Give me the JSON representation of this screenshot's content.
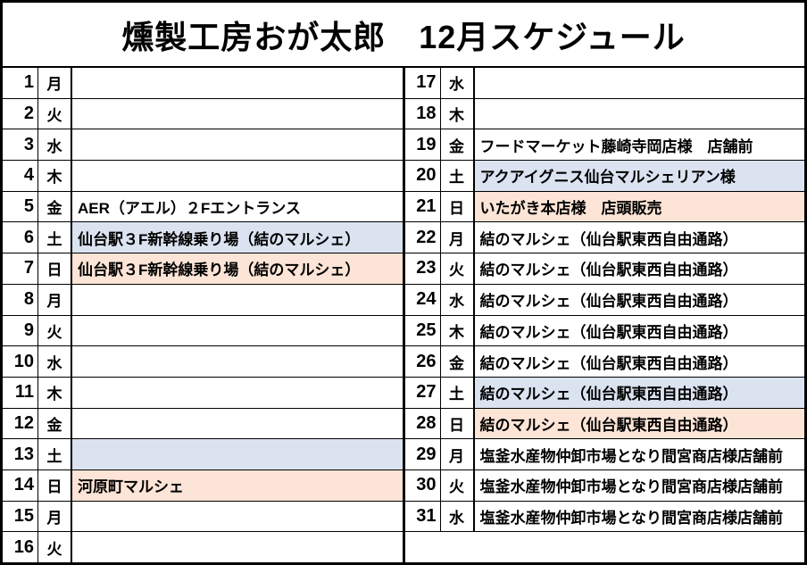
{
  "title": "燻製工房おが太郎　12月スケジュール",
  "colors": {
    "saturday_fill": "#dbe3f1",
    "sunday_fill": "#fce4d6",
    "border": "#000000",
    "text": "#000000",
    "background": "#ffffff"
  },
  "left_rows": [
    {
      "day": "1",
      "weekday": "月",
      "event": "",
      "fill": "none"
    },
    {
      "day": "2",
      "weekday": "火",
      "event": "",
      "fill": "none"
    },
    {
      "day": "3",
      "weekday": "水",
      "event": "",
      "fill": "none"
    },
    {
      "day": "4",
      "weekday": "木",
      "event": "",
      "fill": "none"
    },
    {
      "day": "5",
      "weekday": "金",
      "event": "AER（アエル）２Fエントランス",
      "fill": "none"
    },
    {
      "day": "6",
      "weekday": "土",
      "event": "仙台駅３F新幹線乗り場（結のマルシェ）",
      "fill": "saturday"
    },
    {
      "day": "7",
      "weekday": "日",
      "event": "仙台駅３F新幹線乗り場（結のマルシェ）",
      "fill": "sunday"
    },
    {
      "day": "8",
      "weekday": "月",
      "event": "",
      "fill": "none"
    },
    {
      "day": "9",
      "weekday": "火",
      "event": "",
      "fill": "none"
    },
    {
      "day": "10",
      "weekday": "水",
      "event": "",
      "fill": "none"
    },
    {
      "day": "11",
      "weekday": "木",
      "event": "",
      "fill": "none"
    },
    {
      "day": "12",
      "weekday": "金",
      "event": "",
      "fill": "none"
    },
    {
      "day": "13",
      "weekday": "土",
      "event": "",
      "fill": "saturday"
    },
    {
      "day": "14",
      "weekday": "日",
      "event": "河原町マルシェ",
      "fill": "sunday"
    },
    {
      "day": "15",
      "weekday": "月",
      "event": "",
      "fill": "none"
    },
    {
      "day": "16",
      "weekday": "火",
      "event": "",
      "fill": "none"
    }
  ],
  "right_rows": [
    {
      "day": "17",
      "weekday": "水",
      "event": "",
      "fill": "none"
    },
    {
      "day": "18",
      "weekday": "木",
      "event": "",
      "fill": "none"
    },
    {
      "day": "19",
      "weekday": "金",
      "event": "フードマーケット藤崎寺岡店様　店舗前",
      "fill": "none"
    },
    {
      "day": "20",
      "weekday": "土",
      "event": "アクアイグニス仙台マルシェリアン様",
      "fill": "saturday"
    },
    {
      "day": "21",
      "weekday": "日",
      "event": "いたがき本店様　店頭販売",
      "fill": "sunday"
    },
    {
      "day": "22",
      "weekday": "月",
      "event": "結のマルシェ（仙台駅東西自由通路）",
      "fill": "none"
    },
    {
      "day": "23",
      "weekday": "火",
      "event": "結のマルシェ（仙台駅東西自由通路）",
      "fill": "none"
    },
    {
      "day": "24",
      "weekday": "水",
      "event": "結のマルシェ（仙台駅東西自由通路）",
      "fill": "none"
    },
    {
      "day": "25",
      "weekday": "木",
      "event": "結のマルシェ（仙台駅東西自由通路）",
      "fill": "none"
    },
    {
      "day": "26",
      "weekday": "金",
      "event": "結のマルシェ（仙台駅東西自由通路）",
      "fill": "none"
    },
    {
      "day": "27",
      "weekday": "土",
      "event": "結のマルシェ（仙台駅東西自由通路）",
      "fill": "saturday"
    },
    {
      "day": "28",
      "weekday": "日",
      "event": "結のマルシェ（仙台駅東西自由通路）",
      "fill": "sunday"
    },
    {
      "day": "29",
      "weekday": "月",
      "event": "塩釜水産物仲卸市場となり間宮商店様店舗前",
      "fill": "none"
    },
    {
      "day": "30",
      "weekday": "火",
      "event": "塩釜水産物仲卸市場となり間宮商店様店舗前",
      "fill": "none"
    },
    {
      "day": "31",
      "weekday": "水",
      "event": "塩釜水産物仲卸市場となり間宮商店様店舗前",
      "fill": "none"
    }
  ]
}
